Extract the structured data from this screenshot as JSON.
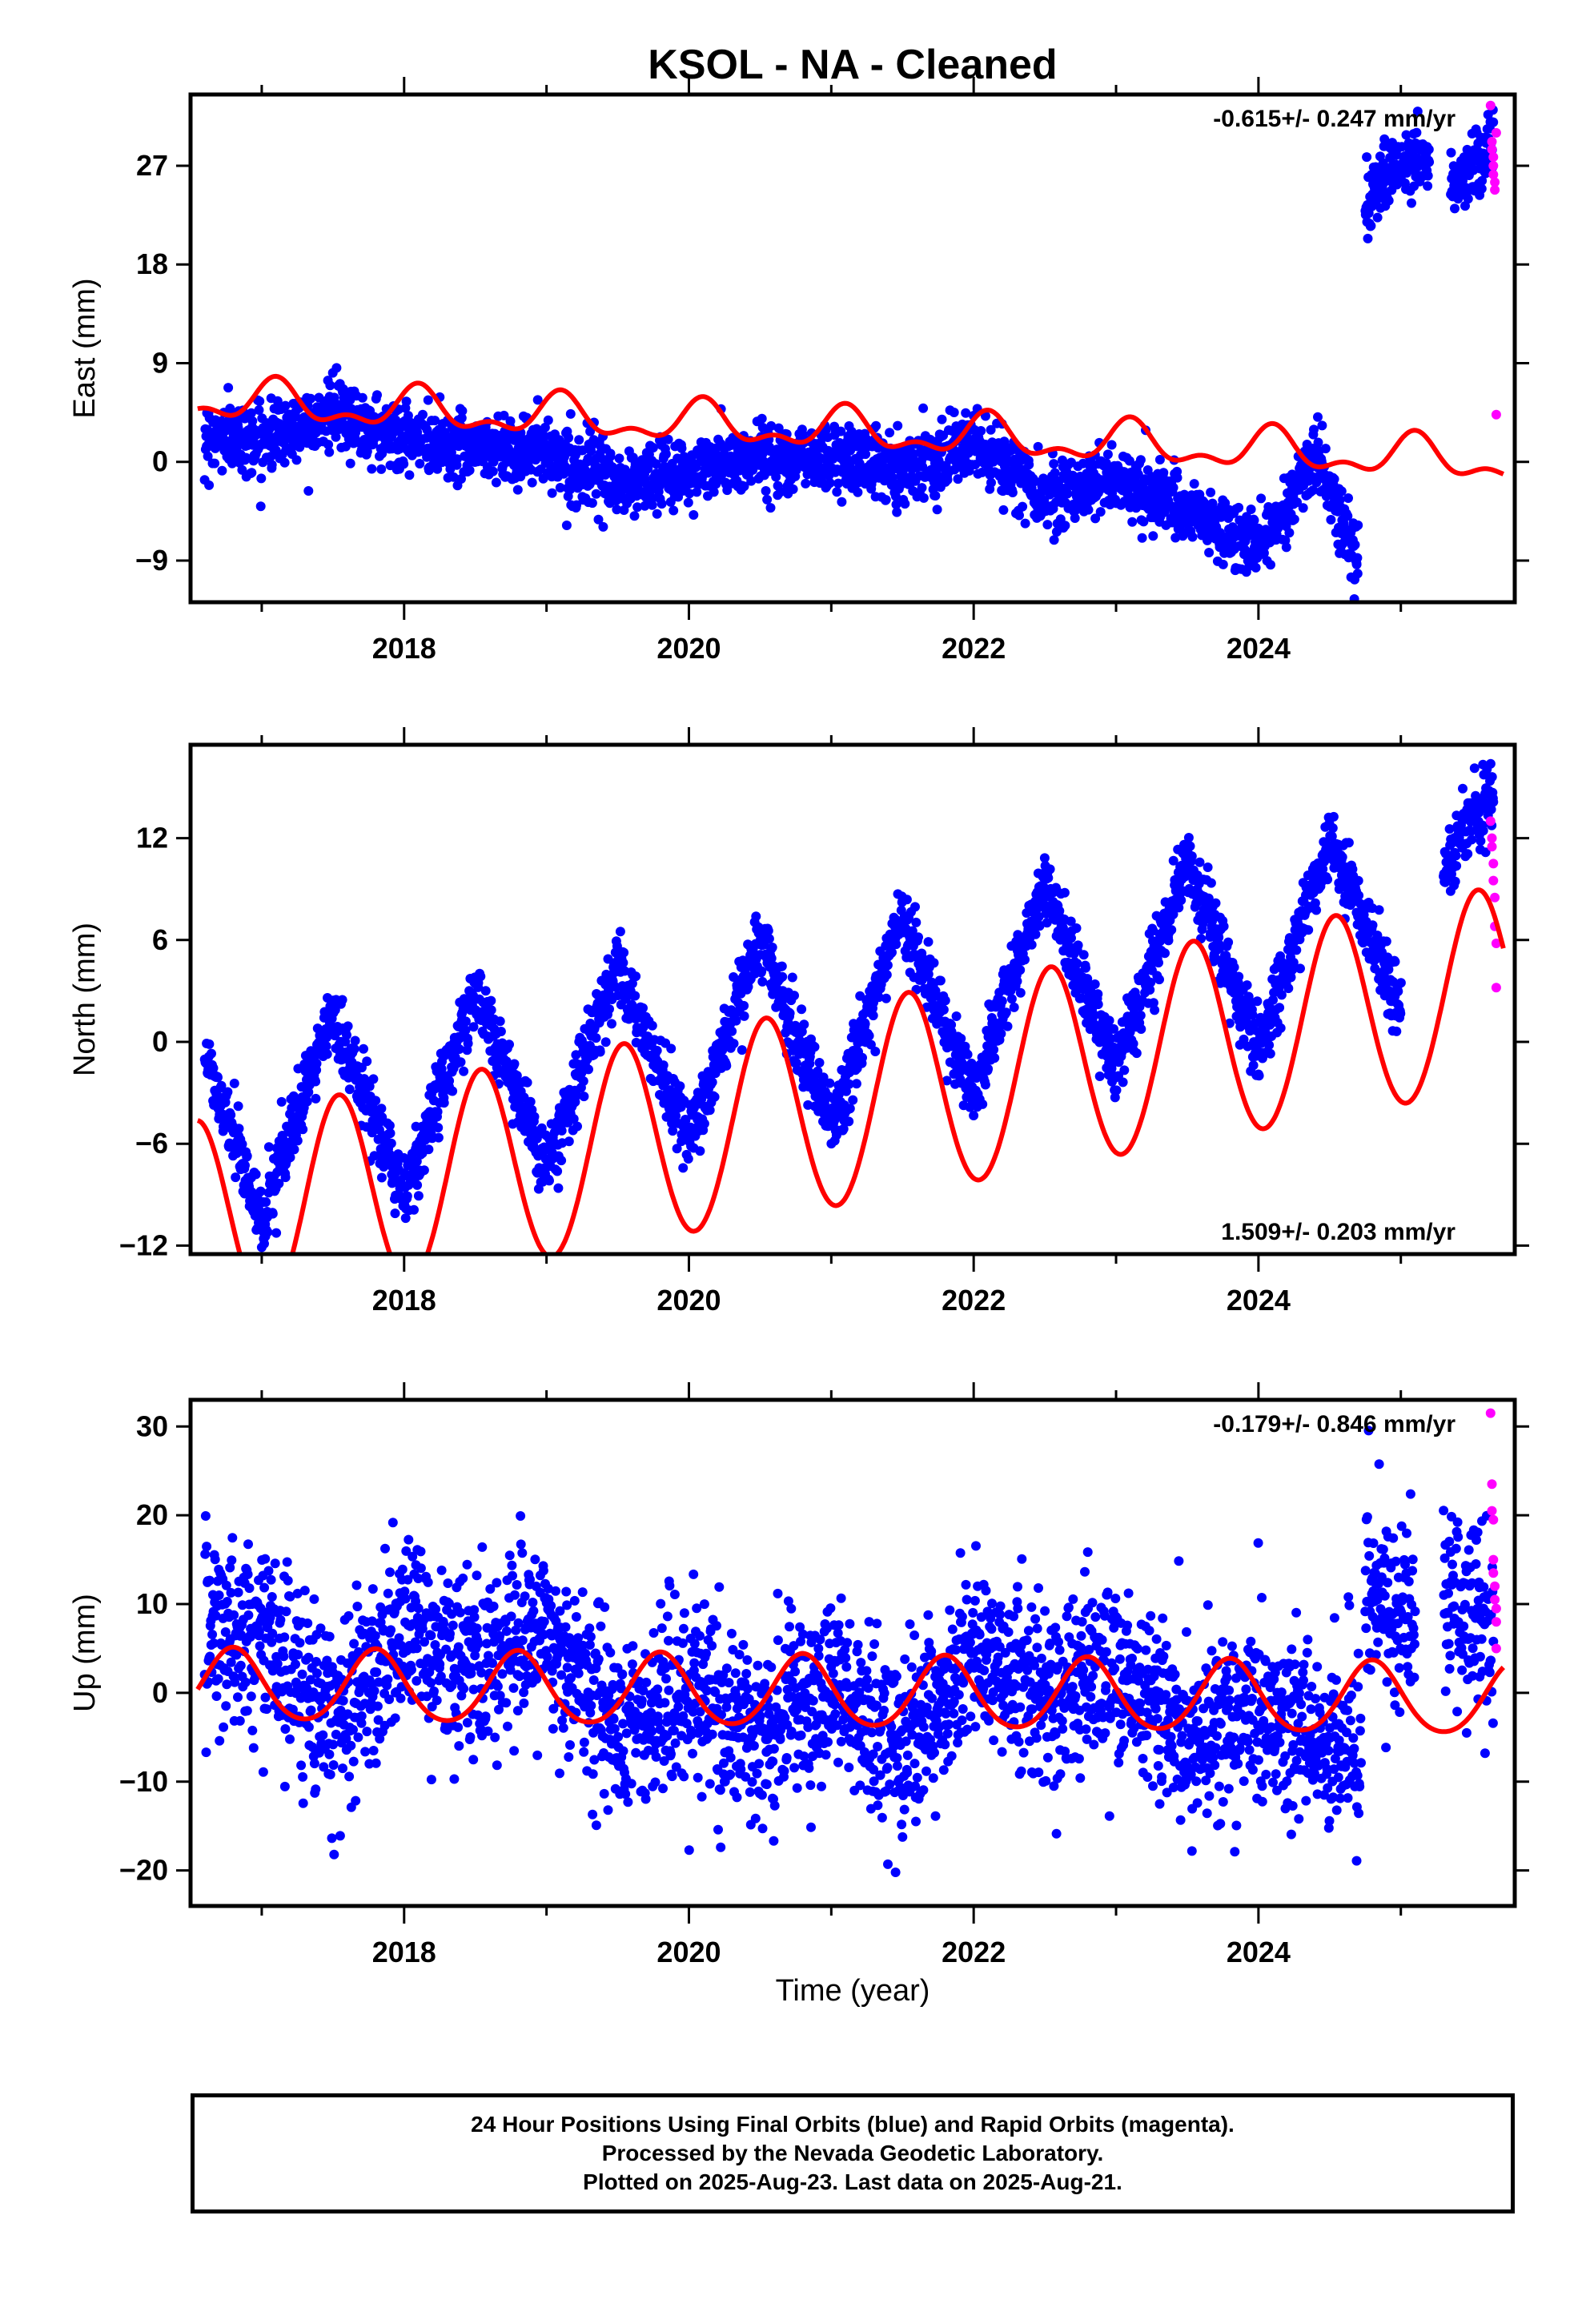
{
  "title": "KSOL  - NA - Cleaned",
  "x_axis": {
    "label": "Time (year)",
    "tick_labels": [
      "2018",
      "2020",
      "2022",
      "2024"
    ],
    "tick_values": [
      2018,
      2020,
      2022,
      2024
    ],
    "range": [
      2016.5,
      2025.8
    ]
  },
  "colors": {
    "final_orbits": "#0000ff",
    "rapid_orbits": "#ff00ff",
    "model": "#ff0000"
  },
  "chart_data": [
    {
      "type": "scatter",
      "component": "East",
      "ylabel": "East (mm)",
      "ylim": [
        -12.8,
        33.5
      ],
      "yticks": [
        -9,
        0,
        9,
        18,
        27
      ],
      "rate_text": "-0.615+/- 0.247 mm/yr",
      "rate_position": "top-right",
      "model": {
        "offset": 2.9,
        "rate": -0.615,
        "annual_amp": 1.6,
        "annual_phase_peak": 0.1,
        "semiannual_amp": 0.9,
        "x_range": [
          2016.55,
          2025.72
        ]
      },
      "trend_segments": [
        {
          "x": [
            2016.6,
            2017.0,
            2017.5,
            2018.0,
            2018.5,
            2019.0,
            2019.5,
            2020.0,
            2020.5,
            2021.0,
            2021.5,
            2022.0,
            2022.5,
            2023.0,
            2023.5,
            2024.0,
            2024.4,
            2024.7
          ],
          "y": [
            2.5,
            2.0,
            4.5,
            2.0,
            1.5,
            0.8,
            -2.0,
            -1.0,
            0.5,
            0.5,
            -0.5,
            1.5,
            -3.0,
            -1.5,
            -4.5,
            -8.0,
            0.5,
            -9.0
          ]
        },
        {
          "x": [
            2024.75,
            2024.9,
            2025.1,
            2025.2
          ],
          "y": [
            23.8,
            26.0,
            27.8,
            27.8
          ]
        },
        {
          "x": [
            2025.35,
            2025.5,
            2025.65
          ],
          "y": [
            25.0,
            26.5,
            29.5
          ]
        }
      ],
      "noise_sd": 1.5,
      "rapid_points": {
        "x": [
          2025.63,
          2025.64,
          2025.64,
          2025.65,
          2025.65,
          2025.65,
          2025.66,
          2025.66,
          2025.67,
          2025.67
        ],
        "y": [
          32.5,
          29.2,
          28.5,
          27.8,
          27.0,
          26.2,
          25.5,
          24.8,
          30.0,
          4.3
        ]
      }
    },
    {
      "type": "scatter",
      "component": "North",
      "ylabel": "North (mm)",
      "ylim": [
        -12.5,
        17.5
      ],
      "yticks": [
        -12,
        -6,
        0,
        6,
        12
      ],
      "rate_text": "1.509+/- 0.203 mm/yr",
      "rate_position": "bottom-right",
      "model": {
        "offset": -4.0,
        "rate": 1.509,
        "annual_amp": 5.9,
        "annual_phase_peak": 0.54,
        "semiannual_amp": 0.2,
        "x_range": [
          2016.55,
          2025.72
        ]
      },
      "trend_segments": [
        {
          "x": [
            2016.6,
            2017.0,
            2017.5,
            2018.0,
            2018.5,
            2019.0,
            2019.5,
            2020.0,
            2020.5,
            2021.0,
            2021.5,
            2022.0,
            2022.5,
            2023.0,
            2023.5,
            2024.0,
            2024.5,
            2025.0
          ],
          "y": [
            -0.5,
            -10.5,
            1.5,
            -9.0,
            3.0,
            -7.5,
            4.5,
            -6.0,
            6.0,
            -5.0,
            7.5,
            -3.0,
            9.0,
            -1.5,
            10.5,
            -0.5,
            12.0,
            2.0
          ]
        },
        {
          "x": [
            2025.3,
            2025.5,
            2025.65
          ],
          "y": [
            10.0,
            13.5,
            14.5
          ]
        }
      ],
      "noise_sd": 1.0,
      "rapid_points": {
        "x": [
          2025.63,
          2025.64,
          2025.64,
          2025.65,
          2025.65,
          2025.66,
          2025.66,
          2025.67,
          2025.67
        ],
        "y": [
          13.0,
          12.0,
          11.5,
          10.5,
          9.5,
          8.5,
          6.8,
          5.8,
          3.2
        ]
      }
    },
    {
      "type": "scatter",
      "component": "Up",
      "ylabel": "Up (mm)",
      "ylim": [
        -24,
        33
      ],
      "yticks": [
        -20,
        -10,
        0,
        10,
        20,
        30
      ],
      "rate_text": "-0.179+/- 0.846 mm/yr",
      "rate_position": "top-right",
      "model": {
        "offset": 0.0,
        "rate": -0.179,
        "annual_amp": 4.0,
        "annual_phase_peak": 0.8,
        "semiannual_amp": 0.4,
        "x_range": [
          2016.55,
          2025.72
        ]
      },
      "trend_segments": [
        {
          "x": [
            2016.6,
            2017.0,
            2017.5,
            2018.0,
            2018.5,
            2019.0,
            2019.5,
            2020.0,
            2020.5,
            2021.0,
            2021.5,
            2022.0,
            2022.5,
            2023.0,
            2023.5,
            2024.0,
            2024.5,
            2024.72
          ],
          "y": [
            8.0,
            6.0,
            -3.0,
            7.0,
            4.0,
            7.0,
            -4.0,
            0.0,
            -5.0,
            1.0,
            -7.0,
            4.0,
            0.0,
            3.0,
            -5.0,
            -2.0,
            -6.0,
            -6.0
          ]
        },
        {
          "x": [
            2024.75,
            2024.9,
            2025.0,
            2025.1
          ],
          "y": [
            14.0,
            8.0,
            10.0,
            9.0
          ]
        },
        {
          "x": [
            2025.3,
            2025.5,
            2025.65
          ],
          "y": [
            12.0,
            8.0,
            5.0
          ]
        }
      ],
      "noise_sd": 5.0,
      "rapid_points": {
        "x": [
          2025.63,
          2025.64,
          2025.64,
          2025.65,
          2025.65,
          2025.65,
          2025.66,
          2025.66,
          2025.67,
          2025.67,
          2025.67
        ],
        "y": [
          31.5,
          23.5,
          20.5,
          19.5,
          15.0,
          13.5,
          12.0,
          10.5,
          9.5,
          8.0,
          5.0
        ]
      }
    }
  ],
  "caption": {
    "line1": "24 Hour Positions Using Final Orbits (blue) and Rapid Orbits (magenta).",
    "line2": "Processed by the Nevada Geodetic Laboratory.",
    "line3": "Plotted on 2025-Aug-23. Last data on 2025-Aug-21."
  }
}
